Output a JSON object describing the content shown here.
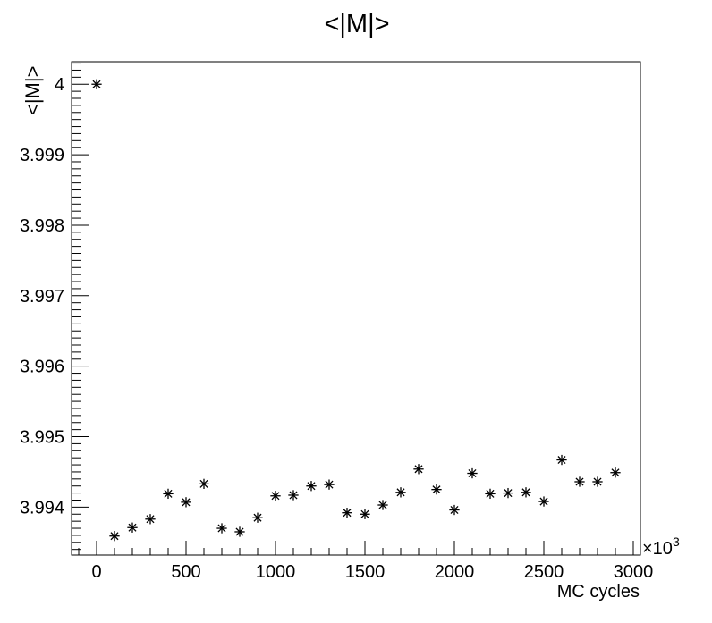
{
  "chart_data": {
    "type": "scatter",
    "title": "<|M|>",
    "xlabel": "MC cycles",
    "ylabel": "<|M|>",
    "x_multiplier_label": "×10",
    "x_multiplier_exponent": "3",
    "xlim": [
      -140,
      3040
    ],
    "ylim": [
      3.99332,
      4.00032
    ],
    "x_ticks": [
      0,
      500,
      1000,
      1500,
      2000,
      2500,
      3000
    ],
    "x_tick_labels": [
      "0",
      "500",
      "1000",
      "1500",
      "2000",
      "2500",
      "3000"
    ],
    "y_ticks": [
      3.994,
      3.995,
      3.996,
      3.997,
      3.998,
      3.999,
      4.0
    ],
    "y_tick_labels": [
      "3.994",
      "3.995",
      "3.996",
      "3.997",
      "3.998",
      "3.999",
      "4"
    ],
    "marker": "star",
    "grid": false,
    "legend": "none",
    "series": [
      {
        "x": [
          0,
          100,
          200,
          300,
          400,
          500,
          600,
          700,
          800,
          900,
          1000,
          1100,
          1200,
          1300,
          1400,
          1500,
          1600,
          1700,
          1800,
          1900,
          2000,
          2100,
          2200,
          2300,
          2400,
          2500,
          2600,
          2700,
          2800,
          2900
        ],
        "y": [
          4.0,
          3.99359,
          3.99371,
          3.99383,
          3.99419,
          3.99407,
          3.99433,
          3.9937,
          3.99365,
          3.99385,
          3.99416,
          3.99417,
          3.9943,
          3.99432,
          3.99392,
          3.9939,
          3.99403,
          3.99421,
          3.99454,
          3.99425,
          3.99396,
          3.99448,
          3.99419,
          3.9942,
          3.99421,
          3.99408,
          3.99467,
          3.99436,
          3.99436,
          3.99449
        ]
      }
    ]
  }
}
